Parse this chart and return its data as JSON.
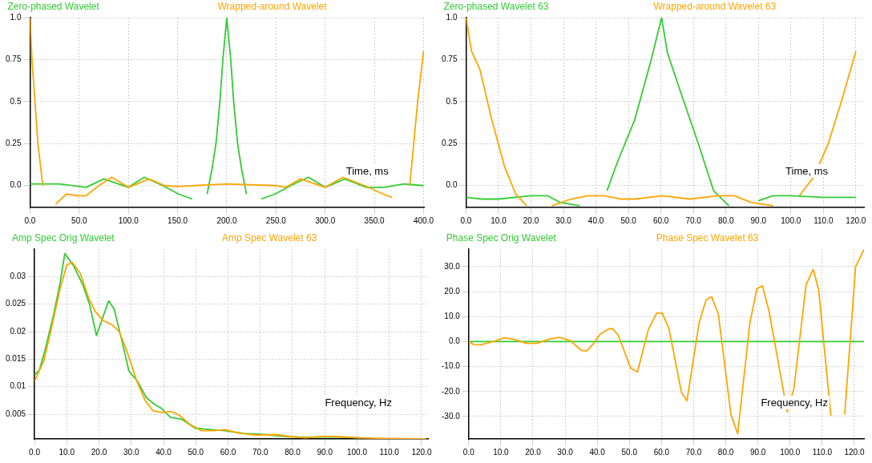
{
  "chart_data": [
    {
      "type": "line",
      "xlabel": "Time, ms",
      "legend": "top",
      "grid": true,
      "xlim": [
        0,
        401
      ],
      "ylim": [
        -0.13,
        1.0
      ],
      "xticks": [
        {
          "value": 0,
          "label": "0.0"
        },
        {
          "value": 50,
          "label": "50.0"
        },
        {
          "value": 100,
          "label": "100.0"
        },
        {
          "value": 150,
          "label": "150.0"
        },
        {
          "value": 200,
          "label": "200.0"
        },
        {
          "value": 250,
          "label": "250.0"
        },
        {
          "value": 300,
          "label": "300.0"
        },
        {
          "value": 350,
          "label": "350.0"
        },
        {
          "value": 400,
          "label": "400.0"
        }
      ],
      "yticks": [
        {
          "value": 0,
          "label": "0.0"
        },
        0.25,
        0.5,
        0.75,
        {
          "value": 1,
          "label": "1.0"
        }
      ],
      "series": [
        {
          "name": "Zero-phased Wavelet",
          "color": "#33cc33",
          "x": [
            0,
            30,
            57,
            75,
            100,
            116,
            135,
            151,
            165,
            175,
            180,
            185,
            189,
            193,
            196,
            200,
            204,
            207,
            211,
            215,
            220,
            225,
            235,
            249,
            265,
            283,
            300,
            320,
            342,
            360,
            380,
            400
          ],
          "values": [
            0.01,
            0.01,
            -0.01,
            0.04,
            -0.01,
            0.05,
            0.0,
            -0.05,
            -0.08,
            null,
            -0.05,
            0.1,
            0.25,
            0.5,
            0.75,
            1.0,
            0.75,
            0.5,
            0.25,
            0.1,
            -0.05,
            null,
            -0.08,
            -0.05,
            0.0,
            0.05,
            -0.01,
            0.04,
            -0.01,
            -0.01,
            0.01,
            0.0
          ]
        },
        {
          "name": "Wrapped-around Wavelet",
          "color": "#ffa500",
          "x": [
            0,
            2,
            5,
            8,
            13,
            21,
            26,
            37,
            48,
            57,
            70,
            83,
            100,
            121,
            137,
            150,
            200,
            250,
            260,
            275,
            300,
            318,
            340,
            359,
            368,
            378,
            386,
            394,
            400
          ],
          "values": [
            1.0,
            0.75,
            0.5,
            0.25,
            0.0,
            null,
            -0.11,
            -0.05,
            -0.06,
            -0.06,
            0.0,
            0.05,
            -0.01,
            0.04,
            0.0,
            -0.005,
            0.01,
            0.0,
            -0.01,
            0.04,
            -0.01,
            0.05,
            0.0,
            -0.05,
            -0.07,
            null,
            0.0,
            0.5,
            0.8
          ]
        }
      ]
    },
    {
      "type": "line",
      "xlabel": "Time, ms",
      "legend": "top",
      "grid": true,
      "xlim": [
        0,
        122.5
      ],
      "ylim": [
        -0.13,
        1.0
      ],
      "xticks": [
        {
          "value": 0,
          "label": "0.0"
        },
        {
          "value": 10,
          "label": "10.0"
        },
        {
          "value": 20,
          "label": "20.0"
        },
        {
          "value": 30,
          "label": "30.0"
        },
        {
          "value": 40,
          "label": "40.0"
        },
        {
          "value": 50,
          "label": "50.0"
        },
        {
          "value": 60,
          "label": "60.0"
        },
        {
          "value": 70,
          "label": "70.0"
        },
        {
          "value": 80,
          "label": "80.0"
        },
        {
          "value": 90,
          "label": "90.0"
        },
        {
          "value": 100,
          "label": "100.0"
        },
        {
          "value": 110,
          "label": "110.0"
        },
        {
          "value": 120,
          "label": "120.0"
        }
      ],
      "yticks": [
        {
          "value": 0,
          "label": "0.0"
        },
        0.25,
        0.5,
        0.75,
        {
          "value": 1,
          "label": "1.0"
        }
      ],
      "series": [
        {
          "name": "Zero-phased Wavelet 63",
          "color": "#33cc33",
          "x": [
            0,
            5,
            10,
            20,
            25,
            29,
            35,
            39,
            43.4,
            46.8,
            51.9,
            57,
            60.2,
            62,
            66,
            71.5,
            76.2,
            80.9,
            85,
            90,
            94.5,
            100,
            110,
            120
          ],
          "values": [
            -0.07,
            -0.08,
            -0.08,
            -0.06,
            -0.06,
            -0.1,
            -0.12,
            null,
            -0.03,
            0.15,
            0.39,
            0.75,
            1.0,
            0.79,
            0.56,
            0.25,
            -0.03,
            -0.12,
            null,
            -0.09,
            -0.06,
            -0.06,
            -0.07,
            -0.07
          ]
        },
        {
          "name": "Wrapped-around Wavelet 63",
          "color": "#ffa500",
          "x": [
            0,
            1.7,
            4.3,
            7.7,
            11.9,
            15.3,
            18.7,
            21.3,
            26.4,
            32.3,
            37.4,
            42.6,
            47.7,
            52,
            60.4,
            69,
            77.4,
            82.6,
            87.7,
            94.5,
            97,
            101,
            102.6,
            107,
            111.5,
            115.7,
            120
          ],
          "values": [
            1.0,
            0.8,
            0.69,
            0.41,
            0.11,
            -0.05,
            -0.12,
            null,
            -0.12,
            -0.08,
            -0.06,
            -0.06,
            -0.08,
            -0.08,
            -0.06,
            -0.08,
            -0.06,
            -0.06,
            -0.1,
            -0.12,
            null,
            null,
            -0.06,
            0.05,
            0.25,
            0.51,
            0.8
          ]
        }
      ]
    },
    {
      "type": "line",
      "xlabel": "Frequency, Hz",
      "legend": "top",
      "grid": true,
      "xlim": [
        0,
        122
      ],
      "ylim": [
        0.0005,
        0.035
      ],
      "xticks": [
        {
          "value": 0,
          "label": "0.0"
        },
        {
          "value": 10,
          "label": "10.0"
        },
        {
          "value": 20,
          "label": "20.0"
        },
        {
          "value": 30,
          "label": "30.0"
        },
        {
          "value": 40,
          "label": "40.0"
        },
        {
          "value": 50,
          "label": "50.0"
        },
        {
          "value": 60,
          "label": "60.0"
        },
        {
          "value": 70,
          "label": "70.0"
        },
        {
          "value": 80,
          "label": "80.0"
        },
        {
          "value": 90,
          "label": "90.0"
        },
        {
          "value": 100,
          "label": "100.0"
        },
        {
          "value": 110,
          "label": "110.0"
        },
        {
          "value": 120,
          "label": "120.0"
        }
      ],
      "yticks": [
        0.005,
        0.01,
        0.015,
        0.02,
        0.025,
        0.03
      ],
      "series": [
        {
          "name": "Amp Spec Orig Wavelet",
          "color": "#33cc33",
          "x": [
            0,
            1.5,
            3.3,
            5.9,
            7.9,
            9.4,
            12.1,
            15,
            17.1,
            19.2,
            23,
            24.7,
            27.2,
            29.3,
            31.8,
            34.7,
            37.2,
            39.3,
            42.2,
            45.6,
            49.7,
            54.8,
            59,
            64.8,
            71.5,
            79,
            84,
            92.4,
            100.8
          ],
          "values": [
            0.0121,
            0.013,
            0.0167,
            0.023,
            0.0287,
            0.0342,
            0.032,
            0.0285,
            0.0249,
            0.0193,
            0.0256,
            0.0241,
            0.0181,
            0.0128,
            0.0111,
            0.008,
            0.0068,
            0.0061,
            0.0044,
            0.0041,
            0.0025,
            0.0022,
            0.002,
            0.0015,
            0.0013,
            0.0009,
            0.0008,
            0.0009,
            0.0007
          ]
        },
        {
          "name": "Amp Spec Wavelet 63",
          "color": "#ffa500",
          "x": [
            0,
            2.9,
            5.4,
            7.9,
            10,
            11.7,
            14.2,
            16.7,
            18.8,
            21.3,
            24.2,
            26.3,
            28.8,
            31.8,
            34.3,
            36.8,
            39.7,
            42.2,
            44.7,
            48.1,
            51.8,
            55.6,
            59,
            64,
            69,
            74.9,
            79.9,
            84,
            89.8,
            94.9,
            100.8,
            109,
            121.5
          ],
          "values": [
            0.011,
            0.0147,
            0.021,
            0.0277,
            0.0321,
            0.0326,
            0.0306,
            0.0263,
            0.0237,
            0.022,
            0.0212,
            0.02,
            0.0162,
            0.0109,
            0.0075,
            0.0056,
            0.0053,
            0.0055,
            0.0049,
            0.0032,
            0.002,
            0.002,
            0.0022,
            0.0015,
            0.0012,
            0.0013,
            0.0009,
            0.0007,
            0.001,
            0.0009,
            0.0007,
            0.0006,
            0.0005
          ]
        }
      ]
    },
    {
      "type": "line",
      "xlabel": "Frequency, Hz",
      "legend": "top",
      "grid": true,
      "xlim": [
        0,
        123
      ],
      "ylim": [
        -39,
        37
      ],
      "xticks": [
        {
          "value": 0,
          "label": "0.0"
        },
        {
          "value": 10,
          "label": "10.0"
        },
        {
          "value": 20,
          "label": "20.0"
        },
        {
          "value": 30,
          "label": "30.0"
        },
        {
          "value": 40,
          "label": "40.0"
        },
        {
          "value": 50,
          "label": "50.0"
        },
        {
          "value": 60,
          "label": "60.0"
        },
        {
          "value": 70,
          "label": "70.0"
        },
        {
          "value": 80,
          "label": "80.0"
        },
        {
          "value": 90,
          "label": "90.0"
        },
        {
          "value": 100,
          "label": "100.0"
        },
        {
          "value": 110,
          "label": "110.0"
        },
        {
          "value": 120,
          "label": "120.0"
        }
      ],
      "yticks": [
        {
          "value": -30,
          "label": "-30.0"
        },
        {
          "value": -20,
          "label": "-20.0"
        },
        {
          "value": -10,
          "label": "-10.0"
        },
        {
          "value": 0,
          "label": "0.0"
        },
        {
          "value": 10,
          "label": "10.0"
        },
        {
          "value": 20,
          "label": "20.0"
        },
        {
          "value": 30,
          "label": "30.0"
        }
      ],
      "series": [
        {
          "name": "Phase Spec Orig Wavelet",
          "color": "#33cc33",
          "x": [
            0,
            123
          ],
          "values": [
            0,
            0
          ]
        },
        {
          "name": "Phase Spec Wavelet 63",
          "color": "#ffa500",
          "x": [
            0,
            1.7,
            3.8,
            7.7,
            11.1,
            14.1,
            17.9,
            21.3,
            24.8,
            28.2,
            31.6,
            35,
            36.7,
            38.9,
            41,
            43.6,
            44.8,
            46.5,
            50.4,
            52.5,
            55.9,
            58.5,
            60.2,
            62.3,
            66.2,
            67.9,
            71.7,
            73.9,
            75.6,
            77.7,
            81.6,
            83.7,
            87.5,
            89.7,
            91.4,
            93.5,
            99.1,
            101.2,
            105,
            107.2,
            108.9,
            112.7,
            114.9,
            117,
            120.4,
            123
          ],
          "values": [
            0,
            -1.3,
            -1.3,
            0,
            1.5,
            0.9,
            -0.7,
            -0.7,
            0.9,
            1.7,
            0.4,
            -3.5,
            -3.8,
            -0.7,
            3.1,
            5.1,
            5.1,
            2.6,
            -10.6,
            -12.2,
            4.8,
            11.4,
            11.4,
            5.3,
            -20.4,
            -23.7,
            7.5,
            16.8,
            17.9,
            10.8,
            -29.2,
            -36.9,
            7.5,
            21.2,
            22.3,
            11.9,
            -28.1,
            -18.8,
            22.8,
            28.9,
            20.7,
            -29.7,
            null,
            -29.2,
            30,
            36.9
          ]
        }
      ]
    }
  ]
}
